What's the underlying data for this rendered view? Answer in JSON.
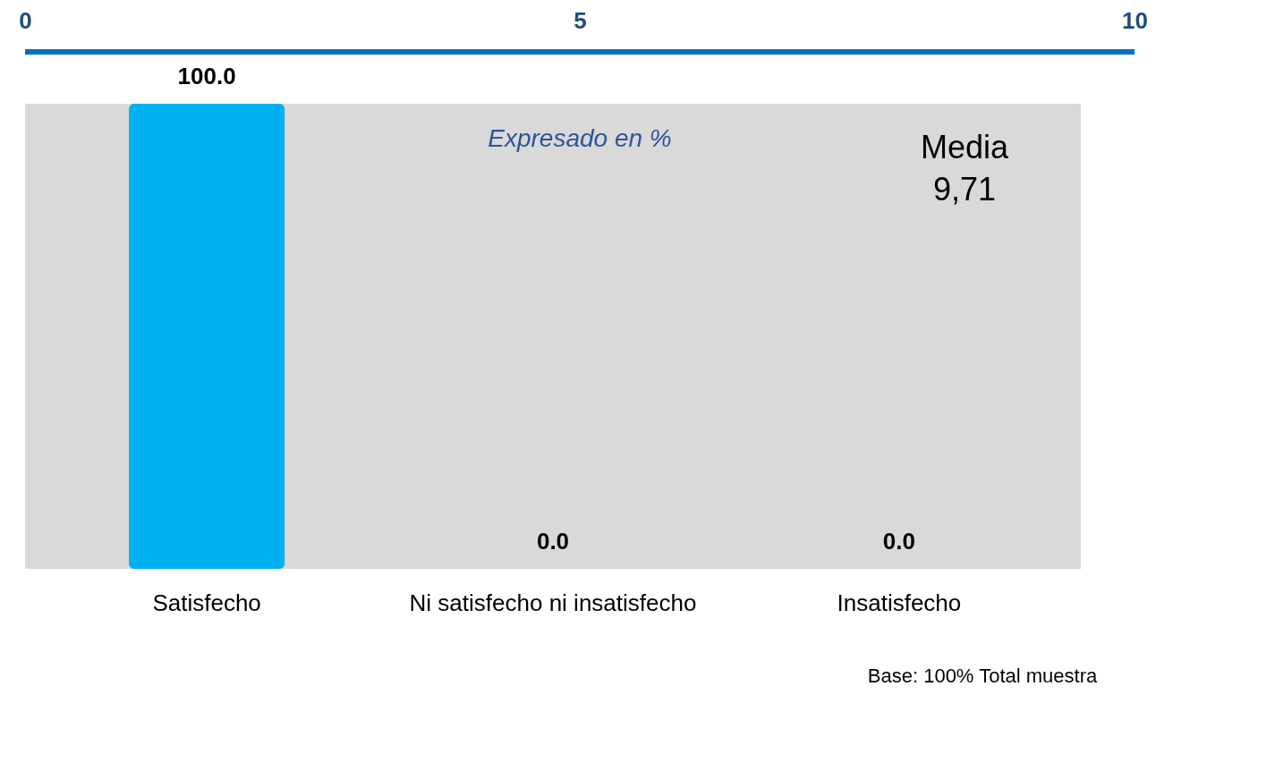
{
  "chart_data": {
    "type": "bar",
    "categories": [
      "Satisfecho",
      "Ni satisfecho ni insatisfecho",
      "Insatisfecho"
    ],
    "values": [
      100,
      0,
      0
    ],
    "colors": [
      "#00b0f0",
      "#70a03a",
      "#b05008"
    ],
    "value_labels": [
      "100.0",
      "0.0",
      "0.0"
    ],
    "x2lim": [
      0,
      10
    ],
    "x2ticks": [
      0,
      5,
      10
    ],
    "annotations": [
      "Expresado en %",
      "Media 9,71",
      "Base: 100% Total muestra"
    ]
  }
}
